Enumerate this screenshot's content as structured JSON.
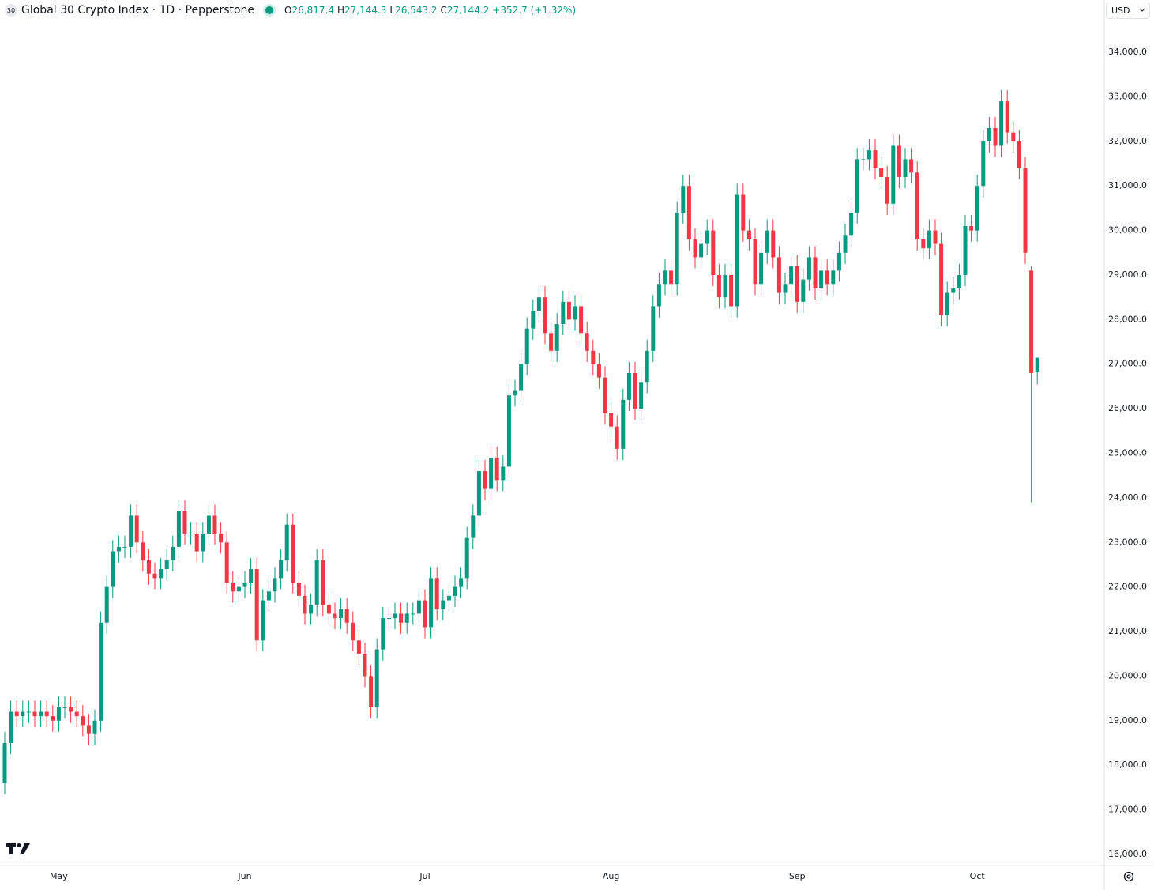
{
  "header": {
    "badge": "30",
    "title": "Global 30 Crypto Index · 1D · Pepperstone",
    "legend": [
      {
        "key": "O",
        "value": "26,817.4"
      },
      {
        "key": "H",
        "value": "27,144.3"
      },
      {
        "key": "L",
        "value": "26,543.2"
      },
      {
        "key": "C",
        "value": "27,144.2"
      }
    ],
    "change": "+352.7 (+1.32%)",
    "currency": "USD"
  },
  "chart_data": {
    "type": "candlestick",
    "up_color": "#089981",
    "down_color": "#f23645",
    "categories": [
      null,
      null,
      null,
      null,
      null,
      null,
      null,
      null,
      null,
      "May",
      null,
      null,
      null,
      null,
      null,
      null,
      null,
      null,
      null,
      null,
      null,
      null,
      null,
      null,
      null,
      null,
      null,
      null,
      null,
      null,
      null,
      null,
      null,
      null,
      null,
      null,
      null,
      null,
      null,
      null,
      "Jun",
      null,
      null,
      null,
      null,
      null,
      null,
      null,
      null,
      null,
      null,
      null,
      null,
      null,
      null,
      null,
      null,
      null,
      null,
      null,
      null,
      null,
      null,
      null,
      null,
      null,
      null,
      null,
      null,
      null,
      "Jul",
      null,
      null,
      null,
      null,
      null,
      null,
      null,
      null,
      null,
      null,
      null,
      null,
      null,
      null,
      null,
      null,
      null,
      null,
      null,
      null,
      null,
      null,
      null,
      null,
      null,
      null,
      null,
      null,
      null,
      null,
      "Aug",
      null,
      null,
      null,
      null,
      null,
      null,
      null,
      null,
      null,
      null,
      null,
      null,
      null,
      null,
      null,
      null,
      null,
      null,
      null,
      null,
      null,
      null,
      null,
      null,
      null,
      null,
      null,
      null,
      null,
      null,
      "Sep",
      null,
      null,
      null,
      null,
      null,
      null,
      null,
      null,
      null,
      null,
      null,
      null,
      null,
      null,
      null,
      null,
      null,
      null,
      null,
      null,
      null,
      null,
      null,
      null,
      null,
      null,
      null,
      null,
      null,
      "Oct",
      null,
      null,
      null,
      null,
      null,
      null,
      null,
      null,
      null,
      null
    ],
    "open": [
      17600,
      18500,
      19200,
      19100,
      19200,
      19200,
      19100,
      19200,
      19100,
      19000,
      19300,
      19300,
      19200,
      19100,
      18900,
      18700,
      19000,
      21200,
      22000,
      22800,
      22900,
      22900,
      23600,
      23000,
      22600,
      22300,
      22200,
      22400,
      22600,
      22900,
      23700,
      23200,
      23200,
      22800,
      23200,
      23600,
      23200,
      23000,
      22100,
      21900,
      22000,
      22100,
      22400,
      20800,
      21700,
      21900,
      22200,
      22600,
      23400,
      22100,
      21800,
      21400,
      21600,
      22600,
      21600,
      21400,
      21300,
      21500,
      21200,
      20800,
      20500,
      20000,
      19300,
      20600,
      21300,
      21300,
      21400,
      21200,
      21400,
      21400,
      21700,
      21100,
      22200,
      21500,
      21700,
      21800,
      22000,
      22200,
      23100,
      23600,
      24600,
      24200,
      24900,
      24400,
      24700,
      26300,
      26400,
      27000,
      27800,
      28200,
      28500,
      27700,
      27300,
      27900,
      28400,
      28000,
      28300,
      27700,
      27300,
      27000,
      26700,
      25900,
      25600,
      25100,
      26200,
      26800,
      26000,
      26600,
      27300,
      28300,
      28800,
      29100,
      28800,
      30400,
      31000,
      29800,
      29400,
      29700,
      30000,
      29000,
      28500,
      29000,
      28300,
      30800,
      30000,
      29800,
      28800,
      29500,
      30000,
      29400,
      28600,
      28800,
      29200,
      28400,
      28900,
      29400,
      28700,
      29100,
      28800,
      29100,
      29500,
      29900,
      30400,
      31600,
      31600,
      31800,
      31400,
      31200,
      30600,
      31900,
      31200,
      31600,
      31300,
      29800,
      29600,
      30000,
      29700,
      28100,
      28600,
      28700,
      29000,
      30100,
      30000,
      31000,
      32000,
      32300,
      31900,
      32900,
      32200,
      32000,
      31400,
      29100,
      26817.4
    ],
    "high": [
      18750,
      19450,
      19450,
      19450,
      19450,
      19450,
      19450,
      19450,
      19350,
      19550,
      19550,
      19550,
      19450,
      19350,
      19150,
      19250,
      21450,
      22250,
      23050,
      23150,
      23150,
      23850,
      23850,
      23250,
      22850,
      22550,
      22650,
      22850,
      23150,
      23950,
      23950,
      23450,
      23450,
      23450,
      23850,
      23850,
      23450,
      23250,
      22350,
      22250,
      22350,
      22650,
      22650,
      21950,
      22150,
      22450,
      22850,
      23650,
      23650,
      22350,
      22050,
      21850,
      22850,
      22850,
      21850,
      21650,
      21750,
      21750,
      21450,
      21050,
      20750,
      20250,
      20850,
      21550,
      21550,
      21650,
      21650,
      21650,
      21650,
      21950,
      21950,
      22450,
      22450,
      21950,
      22050,
      22250,
      22450,
      23350,
      23850,
      24850,
      24850,
      25150,
      25150,
      24950,
      26550,
      26650,
      27250,
      28050,
      28450,
      28750,
      28750,
      27950,
      28150,
      28650,
      28650,
      28550,
      28550,
      27950,
      27550,
      27250,
      26950,
      26150,
      25850,
      26450,
      27050,
      27050,
      26850,
      27550,
      28550,
      29050,
      29350,
      29350,
      30650,
      31250,
      31250,
      30050,
      29950,
      30250,
      30250,
      29250,
      29250,
      29250,
      31050,
      31050,
      30250,
      30050,
      29750,
      30250,
      30250,
      29650,
      29050,
      29450,
      29450,
      29150,
      29650,
      29650,
      29350,
      29350,
      29350,
      29750,
      30150,
      30650,
      31850,
      31850,
      32050,
      32050,
      31650,
      31450,
      32150,
      32150,
      31850,
      31850,
      31550,
      30050,
      30250,
      30250,
      29950,
      28850,
      28950,
      29250,
      30350,
      30350,
      31250,
      32250,
      32550,
      32550,
      33150,
      33150,
      32450,
      32250,
      31650,
      29200,
      27144.3
    ],
    "low": [
      17350,
      18250,
      18850,
      18850,
      18950,
      18850,
      18850,
      18850,
      18750,
      18750,
      19050,
      18950,
      18850,
      18650,
      18450,
      18450,
      18750,
      20950,
      21750,
      22550,
      22650,
      22650,
      22750,
      22350,
      22050,
      21950,
      21950,
      22150,
      22350,
      22650,
      22950,
      22950,
      22550,
      22550,
      22950,
      22950,
      22750,
      21850,
      21650,
      21650,
      21750,
      21850,
      20550,
      20550,
      21450,
      21650,
      21950,
      22350,
      21850,
      21550,
      21150,
      21150,
      21350,
      21350,
      21150,
      21050,
      21050,
      20950,
      20550,
      20250,
      19750,
      19050,
      19050,
      20350,
      21050,
      21050,
      20950,
      20950,
      21150,
      21150,
      20850,
      20850,
      21250,
      21250,
      21450,
      21550,
      21750,
      21950,
      22850,
      23350,
      23950,
      23950,
      24150,
      24150,
      24450,
      26050,
      26150,
      26750,
      27550,
      27950,
      27450,
      27050,
      27050,
      27650,
      27750,
      27750,
      27450,
      27050,
      26750,
      26450,
      25650,
      25350,
      24850,
      24850,
      25950,
      25750,
      25750,
      26350,
      27050,
      28050,
      28550,
      28550,
      28550,
      30150,
      29550,
      29150,
      29150,
      29450,
      28750,
      28250,
      28250,
      28050,
      28050,
      29750,
      29550,
      28550,
      28550,
      29250,
      29150,
      28350,
      28350,
      28550,
      28150,
      28150,
      28650,
      28450,
      28450,
      28550,
      28550,
      28850,
      29250,
      29650,
      30150,
      31350,
      31350,
      31150,
      30950,
      30350,
      30350,
      30950,
      30950,
      31050,
      29550,
      29350,
      29350,
      29450,
      27850,
      27850,
      28350,
      28450,
      28750,
      29750,
      29750,
      30750,
      31750,
      31650,
      31650,
      31950,
      31750,
      31150,
      29250,
      23900,
      26543.2
    ],
    "close": [
      18500,
      19200,
      19100,
      19200,
      19200,
      19100,
      19200,
      19100,
      19000,
      19300,
      19300,
      19200,
      19100,
      18900,
      18700,
      19000,
      21200,
      22000,
      22800,
      22900,
      22900,
      23600,
      23000,
      22600,
      22300,
      22200,
      22400,
      22600,
      22900,
      23700,
      23200,
      23200,
      22800,
      23200,
      23600,
      23200,
      23000,
      22100,
      21900,
      22000,
      22100,
      22400,
      20800,
      21700,
      21900,
      22200,
      22600,
      23400,
      22100,
      21800,
      21400,
      21600,
      22600,
      21600,
      21400,
      21300,
      21500,
      21200,
      20800,
      20500,
      20000,
      19300,
      20600,
      21300,
      21300,
      21400,
      21200,
      21400,
      21400,
      21700,
      21100,
      22200,
      21500,
      21700,
      21800,
      22000,
      22200,
      23100,
      23600,
      24600,
      24200,
      24900,
      24400,
      24700,
      26300,
      26400,
      27000,
      27800,
      28200,
      28500,
      27700,
      27300,
      27900,
      28400,
      28000,
      28300,
      27700,
      27300,
      27000,
      26700,
      25900,
      25600,
      25100,
      26200,
      26800,
      26000,
      26600,
      27300,
      28300,
      28800,
      29100,
      28800,
      30400,
      31000,
      29800,
      29400,
      29700,
      30000,
      29000,
      28500,
      29000,
      28300,
      30800,
      30000,
      29800,
      28800,
      29500,
      30000,
      29400,
      28600,
      28800,
      29200,
      28400,
      28900,
      29400,
      28700,
      29100,
      28800,
      29100,
      29500,
      29900,
      30400,
      31600,
      31600,
      31800,
      31400,
      31200,
      30600,
      31900,
      31200,
      31600,
      31300,
      29800,
      29600,
      30000,
      29700,
      28100,
      28600,
      28700,
      29000,
      30100,
      30000,
      31000,
      32000,
      32300,
      31900,
      32900,
      32200,
      32000,
      31400,
      29500,
      26800,
      27144.2
    ],
    "ylim": [
      15750,
      34640
    ],
    "yticks": [
      {
        "value": 16000,
        "label": "16,000.0"
      },
      {
        "value": 17000,
        "label": "17,000.0"
      },
      {
        "value": 18000,
        "label": "18,000.0"
      },
      {
        "value": 19000,
        "label": "19,000.0"
      },
      {
        "value": 20000,
        "label": "20,000.0"
      },
      {
        "value": 21000,
        "label": "21,000.0"
      },
      {
        "value": 22000,
        "label": "22,000.0"
      },
      {
        "value": 23000,
        "label": "23,000.0"
      },
      {
        "value": 24000,
        "label": "24,000.0"
      },
      {
        "value": 25000,
        "label": "25,000.0"
      },
      {
        "value": 26000,
        "label": "26,000.0"
      },
      {
        "value": 27000,
        "label": "27,000.0"
      },
      {
        "value": 28000,
        "label": "28,000.0"
      },
      {
        "value": 29000,
        "label": "29,000.0"
      },
      {
        "value": 30000,
        "label": "30,000.0"
      },
      {
        "value": 31000,
        "label": "31,000.0"
      },
      {
        "value": 32000,
        "label": "32,000.0"
      },
      {
        "value": 33000,
        "label": "33,000.0"
      },
      {
        "value": 34000,
        "label": "34,000.0"
      }
    ],
    "grid": false
  }
}
